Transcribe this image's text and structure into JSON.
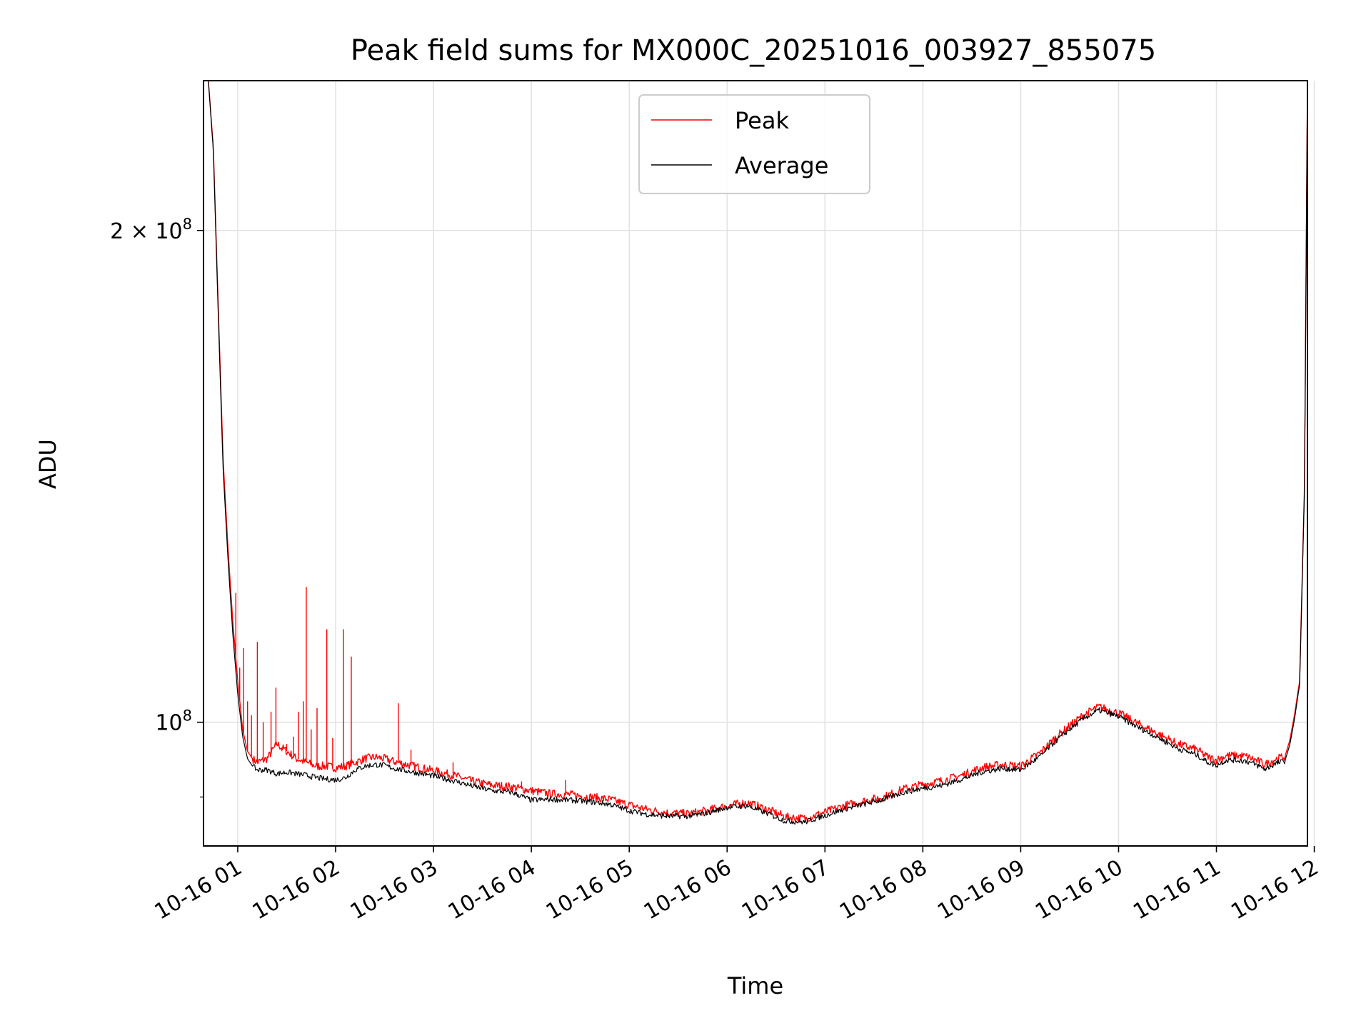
{
  "chart_data": {
    "type": "line",
    "title": "Peak field sums for MX000C_20251016_003927_855075",
    "xlabel": "Time",
    "ylabel": "ADU",
    "yscale": "log",
    "grid": true,
    "legend_position": "upper-center",
    "xlim": [
      0.65,
      11.93
    ],
    "ylim": [
      84000000,
      247000000
    ],
    "x_ticks": [
      {
        "value": 1,
        "label": "10-16 01"
      },
      {
        "value": 2,
        "label": "10-16 02"
      },
      {
        "value": 3,
        "label": "10-16 03"
      },
      {
        "value": 4,
        "label": "10-16 04"
      },
      {
        "value": 5,
        "label": "10-16 05"
      },
      {
        "value": 6,
        "label": "10-16 06"
      },
      {
        "value": 7,
        "label": "10-16 07"
      },
      {
        "value": 8,
        "label": "10-16 08"
      },
      {
        "value": 9,
        "label": "10-16 09"
      },
      {
        "value": 10,
        "label": "10-16 10"
      },
      {
        "value": 11,
        "label": "10-16 11"
      },
      {
        "value": 12,
        "label": "10-16 12"
      }
    ],
    "y_ticks": [
      {
        "value": 100000000,
        "base": "10",
        "exp": "8",
        "coef": ""
      },
      {
        "value": 200000000,
        "base": "10",
        "exp": "8",
        "coef": "2 × "
      }
    ],
    "y_minor_ticks": [
      90000000
    ],
    "series": [
      {
        "name": "Peak",
        "color": "#ff0000",
        "x": [
          0.65,
          0.7,
          0.75,
          0.8,
          0.85,
          0.9,
          0.95,
          1.0,
          1.05,
          1.1,
          1.15,
          1.2,
          1.3,
          1.4,
          1.5,
          1.6,
          1.7,
          1.8,
          1.9,
          2.0,
          2.1,
          2.2,
          2.3,
          2.4,
          2.5,
          2.6,
          2.8,
          3.0,
          3.2,
          3.4,
          3.6,
          3.8,
          4.0,
          4.2,
          4.4,
          4.6,
          4.8,
          5.0,
          5.2,
          5.4,
          5.6,
          5.8,
          6.0,
          6.2,
          6.4,
          6.6,
          6.8,
          7.0,
          7.2,
          7.4,
          7.6,
          7.8,
          8.0,
          8.2,
          8.4,
          8.6,
          8.8,
          9.0,
          9.2,
          9.35,
          9.5,
          9.65,
          9.8,
          10.0,
          10.2,
          10.4,
          10.6,
          10.8,
          10.9,
          11.0,
          11.1,
          11.2,
          11.3,
          11.4,
          11.5,
          11.6,
          11.7,
          11.75,
          11.8,
          11.85,
          11.9,
          11.93
        ],
        "y": [
          247000000,
          247000000,
          225000000,
          180000000,
          145000000,
          128000000,
          115000000,
          106000000,
          99000000,
          96000000,
          95000000,
          94500000,
          95000000,
          97000000,
          96000000,
          95000000,
          94500000,
          94000000,
          94000000,
          93800000,
          94000000,
          94500000,
          95000000,
          95200000,
          95000000,
          94600000,
          94000000,
          93400000,
          92800000,
          92000000,
          91500000,
          91300000,
          90800000,
          90400000,
          90300000,
          90000000,
          89700000,
          89000000,
          88400000,
          88000000,
          87900000,
          88300000,
          88900000,
          89300000,
          88500000,
          87500000,
          87300000,
          88100000,
          88900000,
          89500000,
          90000000,
          91000000,
          91600000,
          92100000,
          92800000,
          93800000,
          94200000,
          94000000,
          95800000,
          97800000,
          99500000,
          101100000,
          102200000,
          101300000,
          99800000,
          98400000,
          97000000,
          96200000,
          95300000,
          94800000,
          95400000,
          95400000,
          95300000,
          94800000,
          94200000,
          94900000,
          95300000,
          97500000,
          101200000,
          106000000,
          140000000,
          247000000
        ],
        "spikes": [
          {
            "x": 0.98,
            "y": 120000000
          },
          {
            "x": 1.02,
            "y": 108000000
          },
          {
            "x": 1.06,
            "y": 111000000
          },
          {
            "x": 1.1,
            "y": 103000000
          },
          {
            "x": 1.14,
            "y": 101000000
          },
          {
            "x": 1.2,
            "y": 112000000
          },
          {
            "x": 1.26,
            "y": 100000000
          },
          {
            "x": 1.34,
            "y": 101500000
          },
          {
            "x": 1.39,
            "y": 105000000
          },
          {
            "x": 1.45,
            "y": 96000000
          },
          {
            "x": 1.5,
            "y": 97000000
          },
          {
            "x": 1.57,
            "y": 98000000
          },
          {
            "x": 1.62,
            "y": 101500000
          },
          {
            "x": 1.67,
            "y": 103000000
          },
          {
            "x": 1.7,
            "y": 121000000
          },
          {
            "x": 1.75,
            "y": 99000000
          },
          {
            "x": 1.81,
            "y": 102000000
          },
          {
            "x": 1.91,
            "y": 114000000
          },
          {
            "x": 1.97,
            "y": 97800000
          },
          {
            "x": 2.08,
            "y": 114000000
          },
          {
            "x": 2.16,
            "y": 109700000
          },
          {
            "x": 2.64,
            "y": 102700000
          },
          {
            "x": 2.77,
            "y": 96200000
          },
          {
            "x": 3.2,
            "y": 94500000
          },
          {
            "x": 3.9,
            "y": 92000000
          },
          {
            "x": 4.35,
            "y": 92200000
          }
        ]
      },
      {
        "name": "Average",
        "color": "#000000",
        "x": [
          0.65,
          0.7,
          0.75,
          0.8,
          0.85,
          0.9,
          0.95,
          1.0,
          1.05,
          1.1,
          1.15,
          1.2,
          1.3,
          1.4,
          1.5,
          1.6,
          1.7,
          1.8,
          1.9,
          2.0,
          2.1,
          2.2,
          2.3,
          2.4,
          2.5,
          2.6,
          2.8,
          3.0,
          3.2,
          3.4,
          3.6,
          3.8,
          4.0,
          4.2,
          4.4,
          4.6,
          4.8,
          5.0,
          5.2,
          5.4,
          5.6,
          5.8,
          6.0,
          6.2,
          6.4,
          6.6,
          6.8,
          7.0,
          7.2,
          7.4,
          7.6,
          7.8,
          8.0,
          8.2,
          8.4,
          8.6,
          8.8,
          9.0,
          9.2,
          9.35,
          9.5,
          9.65,
          9.8,
          10.0,
          10.2,
          10.4,
          10.6,
          10.8,
          10.9,
          11.0,
          11.1,
          11.2,
          11.3,
          11.4,
          11.5,
          11.6,
          11.7,
          11.75,
          11.8,
          11.85,
          11.9,
          11.93
        ],
        "y": [
          247000000,
          247000000,
          224000000,
          178000000,
          143000000,
          126000000,
          113000000,
          104000000,
          98000000,
          95000000,
          94000000,
          93500000,
          93500000,
          93000000,
          93200000,
          93000000,
          92800000,
          92500000,
          92300000,
          92200000,
          92500000,
          93500000,
          94000000,
          94200000,
          94100000,
          93700000,
          93200000,
          92700000,
          92100000,
          91400000,
          90800000,
          90600000,
          89600000,
          89700000,
          89600000,
          89400000,
          89100000,
          88300000,
          87800000,
          87600000,
          87600000,
          88000000,
          88700000,
          88900000,
          88000000,
          87000000,
          86900000,
          87700000,
          88500000,
          89100000,
          89700000,
          90600000,
          91100000,
          91500000,
          92300000,
          93200000,
          93700000,
          93500000,
          95300000,
          97300000,
          99000000,
          100600000,
          101700000,
          100800000,
          99300000,
          97900000,
          96400000,
          95500000,
          94600000,
          94100000,
          94800000,
          94800000,
          94700000,
          94200000,
          93600000,
          94300000,
          94700000,
          96900000,
          100600000,
          105500000,
          139000000,
          247000000
        ]
      }
    ]
  }
}
